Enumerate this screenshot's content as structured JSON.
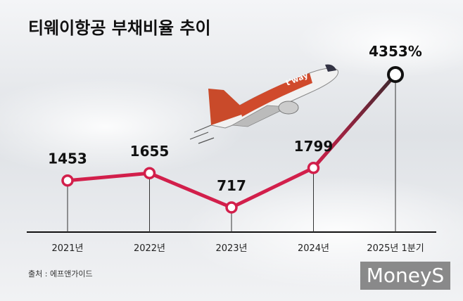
{
  "chart_data": {
    "type": "line",
    "title": "티웨이항공 부채비율 추이",
    "categories": [
      "2021년",
      "2022년",
      "2023년",
      "2024년",
      "2025년 1분기"
    ],
    "values": [
      1453,
      1655,
      717,
      1799,
      4353
    ],
    "value_labels": [
      "1453",
      "1655",
      "717",
      "1799",
      "4353%"
    ],
    "color": "#d21f4b",
    "source": "출처 : 에프앤가이드",
    "watermark": "MoneyS",
    "illustration_text": "t'way"
  }
}
